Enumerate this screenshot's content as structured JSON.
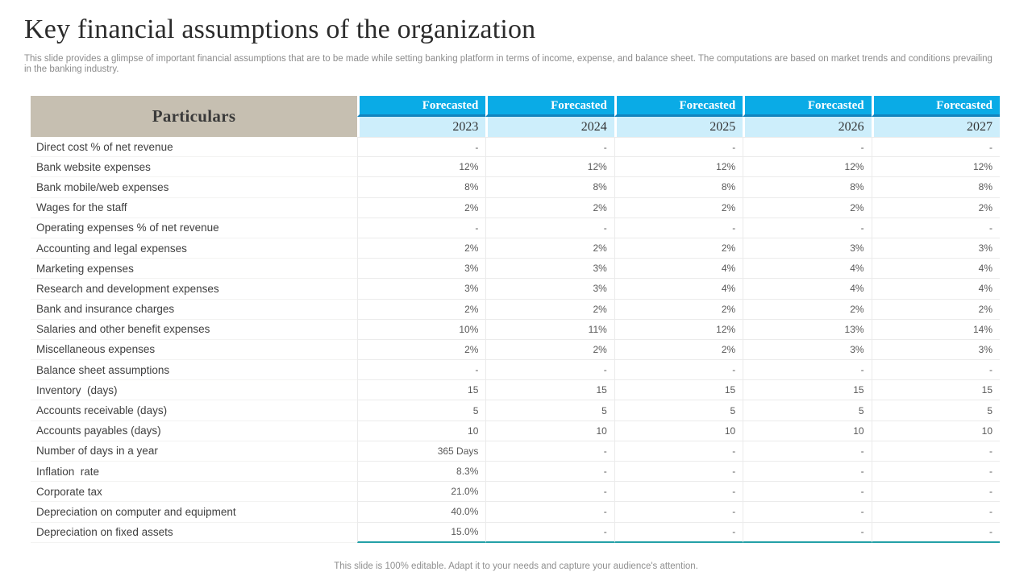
{
  "header": {
    "title": "Key financial assumptions of the organization",
    "subtitle": "This slide provides a glimpse of important financial assumptions that are to be made while setting banking platform in terms of income, expense, and balance sheet. The computations are based on market trends and conditions prevailing in the banking industry."
  },
  "table": {
    "corner_header": "Particulars",
    "columns": [
      {
        "top_label": "Forecasted",
        "year": "2023"
      },
      {
        "top_label": "Forecasted",
        "year": "2024"
      },
      {
        "top_label": "Forecasted",
        "year": "2025"
      },
      {
        "top_label": "Forecasted",
        "year": "2026"
      },
      {
        "top_label": "Forecasted",
        "year": "2027"
      }
    ],
    "rows": [
      {
        "label": "Direct cost % of net revenue",
        "values": [
          "-",
          "-",
          "-",
          "-",
          "-"
        ]
      },
      {
        "label": "Bank website expenses",
        "values": [
          "12%",
          "12%",
          "12%",
          "12%",
          "12%"
        ]
      },
      {
        "label": "Bank mobile/web expenses",
        "values": [
          "8%",
          "8%",
          "8%",
          "8%",
          "8%"
        ]
      },
      {
        "label": "Wages for the staff",
        "values": [
          "2%",
          "2%",
          "2%",
          "2%",
          "2%"
        ]
      },
      {
        "label": "Operating expenses % of net revenue",
        "values": [
          "-",
          "-",
          "-",
          "-",
          "-"
        ]
      },
      {
        "label": "Accounting and legal expenses",
        "values": [
          "2%",
          "2%",
          "2%",
          "3%",
          "3%"
        ]
      },
      {
        "label": "Marketing expenses",
        "values": [
          "3%",
          "3%",
          "4%",
          "4%",
          "4%"
        ]
      },
      {
        "label": "Research and development expenses",
        "values": [
          "3%",
          "3%",
          "4%",
          "4%",
          "4%"
        ]
      },
      {
        "label": "Bank and insurance charges",
        "values": [
          "2%",
          "2%",
          "2%",
          "2%",
          "2%"
        ]
      },
      {
        "label": "Salaries and other benefit expenses",
        "values": [
          "10%",
          "11%",
          "12%",
          "13%",
          "14%"
        ]
      },
      {
        "label": "Miscellaneous expenses",
        "values": [
          "2%",
          "2%",
          "2%",
          "3%",
          "3%"
        ]
      },
      {
        "label": "Balance sheet assumptions",
        "values": [
          "-",
          "-",
          "-",
          "-",
          "-"
        ]
      },
      {
        "label": "Inventory  (days)",
        "values": [
          "15",
          "15",
          "15",
          "15",
          "15"
        ]
      },
      {
        "label": "Accounts receivable (days)",
        "values": [
          "5",
          "5",
          "5",
          "5",
          "5"
        ]
      },
      {
        "label": "Accounts payables (days)",
        "values": [
          "10",
          "10",
          "10",
          "10",
          "10"
        ]
      },
      {
        "label": "Number of days in a year",
        "values": [
          "365 Days",
          "-",
          "-",
          "-",
          "-"
        ]
      },
      {
        "label": "Inflation  rate",
        "values": [
          "8.3%",
          "-",
          "-",
          "-",
          "-"
        ]
      },
      {
        "label": "Corporate tax",
        "values": [
          "21.0%",
          "-",
          "-",
          "-",
          "-"
        ]
      },
      {
        "label": "Depreciation on computer and equipment",
        "values": [
          "40.0%",
          "-",
          "-",
          "-",
          "-"
        ]
      },
      {
        "label": "Depreciation on fixed assets",
        "values": [
          "15.0%",
          "-",
          "-",
          "-",
          "-"
        ]
      }
    ]
  },
  "footer": {
    "note": "This slide is 100% editable. Adapt it to your needs and capture your audience's attention."
  },
  "colors": {
    "accent_blue": "#0aabe6",
    "accent_blue_dark_border": "#1283bd",
    "year_row_light_blue": "#cdeefb",
    "particulars_beige": "#c6bfb1",
    "teal_bottom_line": "#23a0a7",
    "title_text": "#2b2b2b",
    "subtitle_text": "#8c8c8c",
    "row_label_text": "#3f3f3f",
    "cell_value_text": "#595959"
  }
}
